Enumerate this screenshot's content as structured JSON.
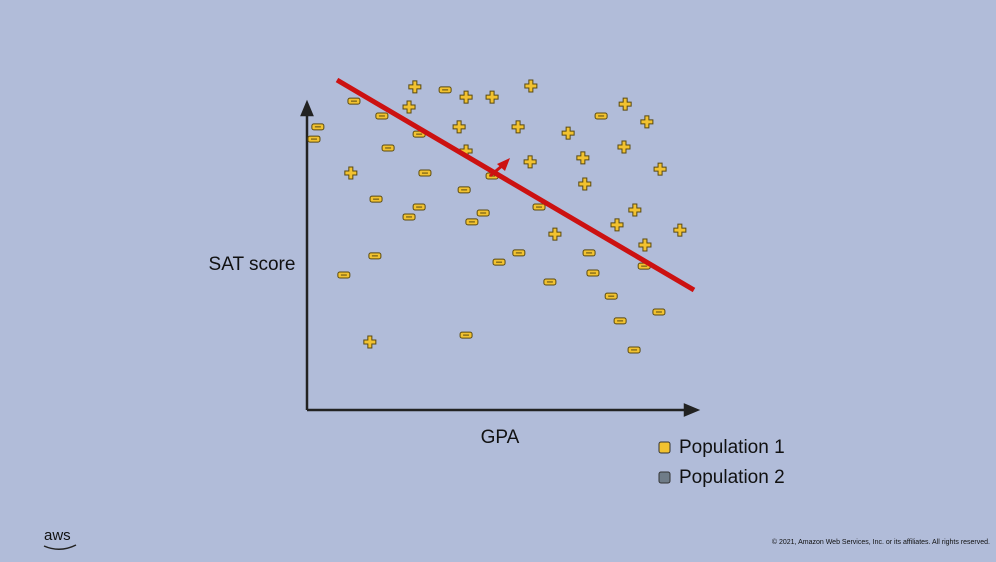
{
  "chart_data": {
    "type": "scatter",
    "xlabel": "GPA",
    "ylabel": "SAT score",
    "xlim": [
      0,
      100
    ],
    "ylim": [
      0,
      100
    ],
    "series": [
      {
        "name": "Population 1",
        "color": "#f2c230",
        "x": [
          27.8,
          41,
          47.7,
          57.7,
          26.3,
          82,
          39.2,
          54.4,
          67.3,
          87.6,
          41,
          81.7,
          57.5,
          71.1,
          91,
          11.3,
          71.6,
          84.5,
          79.9,
          63.9,
          87.1,
          96.1,
          16.2,
          2.8,
          1.8,
          12.1,
          19.3,
          35.6,
          20.9,
          28.9,
          30.4,
          17.8,
          28.9,
          26.3,
          40.5,
          45.4,
          42.5,
          47.7,
          59.8,
          75.8,
          54.6,
          49.5,
          72.7,
          73.7,
          62.6,
          78.4,
          86.9,
          90.7,
          80.7,
          84.3,
          17.5,
          9.5,
          41
        ],
        "y": [
          97.9,
          94.8,
          94.8,
          98.2,
          91.8,
          92.7,
          85.8,
          85.8,
          83.9,
          87.3,
          78.5,
          79.7,
          75.2,
          76.4,
          73,
          71.8,
          68.5,
          60.6,
          56.1,
          53.3,
          50,
          54.5,
          20.6,
          85.8,
          82.1,
          93.6,
          89.1,
          97,
          79.4,
          83.6,
          71.8,
          63.9,
          61.5,
          58.5,
          66.7,
          59.7,
          57,
          70.9,
          61.5,
          89.1,
          47.6,
          44.8,
          47.6,
          41.5,
          38.8,
          34.5,
          43.6,
          29.7,
          27,
          18.2,
          46.7,
          40.9,
          22.7
        ],
        "markers": [
          "plus",
          "plus",
          "plus",
          "plus",
          "plus",
          "plus",
          "plus",
          "plus",
          "plus",
          "plus",
          "plus",
          "plus",
          "plus",
          "plus",
          "plus",
          "plus",
          "plus",
          "plus",
          "plus",
          "plus",
          "plus",
          "plus",
          "plus",
          "minus",
          "minus",
          "minus",
          "minus",
          "minus",
          "minus",
          "minus",
          "minus",
          "minus",
          "minus",
          "minus",
          "minus",
          "minus",
          "minus",
          "minus",
          "minus",
          "minus",
          "minus",
          "minus",
          "minus",
          "minus",
          "minus",
          "minus",
          "minus",
          "minus",
          "minus",
          "minus",
          "minus",
          "minus",
          "minus"
        ]
      },
      {
        "name": "Population 2",
        "color": "#6f7c88",
        "x": [],
        "y": [],
        "markers": []
      }
    ]
  },
  "footer": {
    "logo": "aws",
    "copyright": "© 2021, Amazon Web Services, Inc. or its affiliates. All rights reserved."
  }
}
